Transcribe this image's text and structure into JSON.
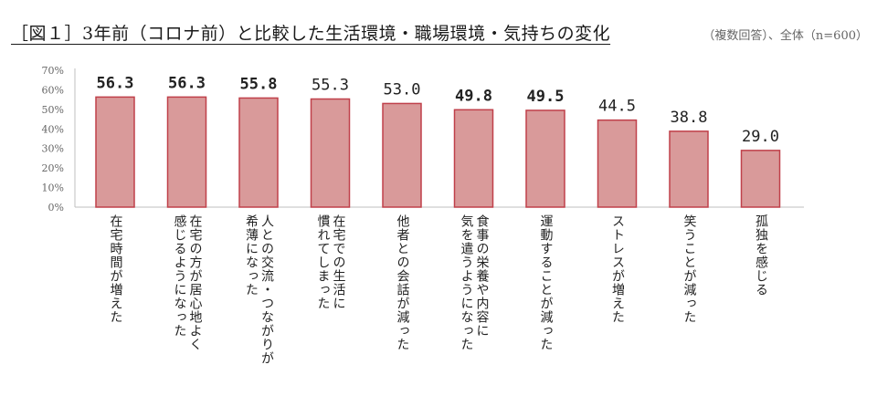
{
  "header": {
    "title": "［図１］3年前（コロナ前）と比較した生活環境・職場環境・気持ちの変化",
    "subtitle": "（複数回答）、全体（n=600）"
  },
  "chart_data": {
    "type": "bar",
    "title": "［図１］3年前（コロナ前）と比較した生活環境・職場環境・気持ちの変化",
    "subtitle": "（複数回答）、全体（n=600）",
    "categories": [
      [
        "在宅時間が増えた"
      ],
      [
        "在宅の方が居心地よく",
        "感じるようになった"
      ],
      [
        "人との交流・つながりが",
        "希薄になった"
      ],
      [
        "在宅での生活に",
        "慣れてしまった"
      ],
      [
        "他者との会話が減った"
      ],
      [
        "食事の栄養や内容に",
        "気を遣うようになった"
      ],
      [
        "運動することが減った"
      ],
      [
        "ストレスが増えた"
      ],
      [
        "笑うことが減った"
      ],
      [
        "孤独を感じる"
      ]
    ],
    "values": [
      56.3,
      56.3,
      55.8,
      55.3,
      53.0,
      49.8,
      49.5,
      44.5,
      38.8,
      29.0
    ],
    "value_labels": [
      "56.3",
      "56.3",
      "55.8",
      "55.3",
      "53.0",
      "49.8",
      "49.5",
      "44.5",
      "38.8",
      "29.0"
    ],
    "bold_value_labels": [
      true,
      true,
      true,
      false,
      false,
      true,
      true,
      false,
      false,
      false
    ],
    "y_ticks": [
      "0%",
      "10%",
      "20%",
      "30%",
      "40%",
      "50%",
      "60%",
      "70%"
    ],
    "ylim": [
      0,
      70
    ],
    "grid": false,
    "colors": {
      "bar_fill": "#d99a9a",
      "bar_stroke": "#c0404a",
      "axis": "#bfbfbf",
      "tick_text": "#666666",
      "value_text": "#222222"
    }
  }
}
